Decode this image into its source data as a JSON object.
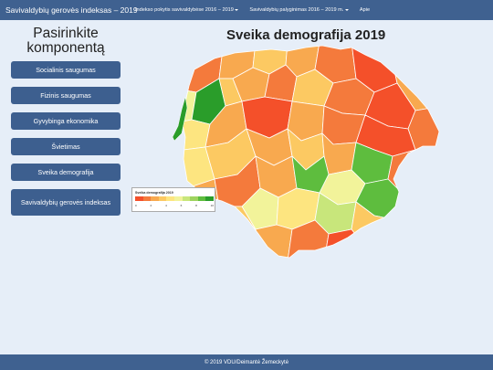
{
  "nav": {
    "brand": "Savivaldybių gerovės indeksas – 2019",
    "items": [
      {
        "label": "Indekso pokytis savivaldybėse 2016 – 2019",
        "dropdown": true
      },
      {
        "label": "Savivaldybių palyginimas 2016 – 2019 m.",
        "dropdown": true
      },
      {
        "label": "Apie",
        "dropdown": false
      }
    ]
  },
  "sidebar": {
    "title": "Pasirinkite komponentą",
    "buttons": [
      {
        "label": "Socialinis saugumas"
      },
      {
        "label": "Fizinis saugumas"
      },
      {
        "label": "Gyvybinga ekonomika"
      },
      {
        "label": "Švietimas"
      },
      {
        "label": "Sveika demografija"
      },
      {
        "label": "Savivaldybių gerovės indeksas"
      }
    ]
  },
  "map": {
    "title": "Sveika demografija 2019"
  },
  "legend": {
    "title": "Sveika demografija 2019",
    "colors": [
      "#f4502a",
      "#f47a3c",
      "#f8a94f",
      "#fcc962",
      "#fde580",
      "#f2f39a",
      "#c8e67b",
      "#9ed35e",
      "#5ebd3e",
      "#2a9d2a"
    ],
    "ticks": [
      "0",
      "2",
      "4",
      "6",
      "8",
      "10"
    ]
  },
  "footer": {
    "text": "© 2019 VDU/Deimantė Žemeckytė"
  }
}
